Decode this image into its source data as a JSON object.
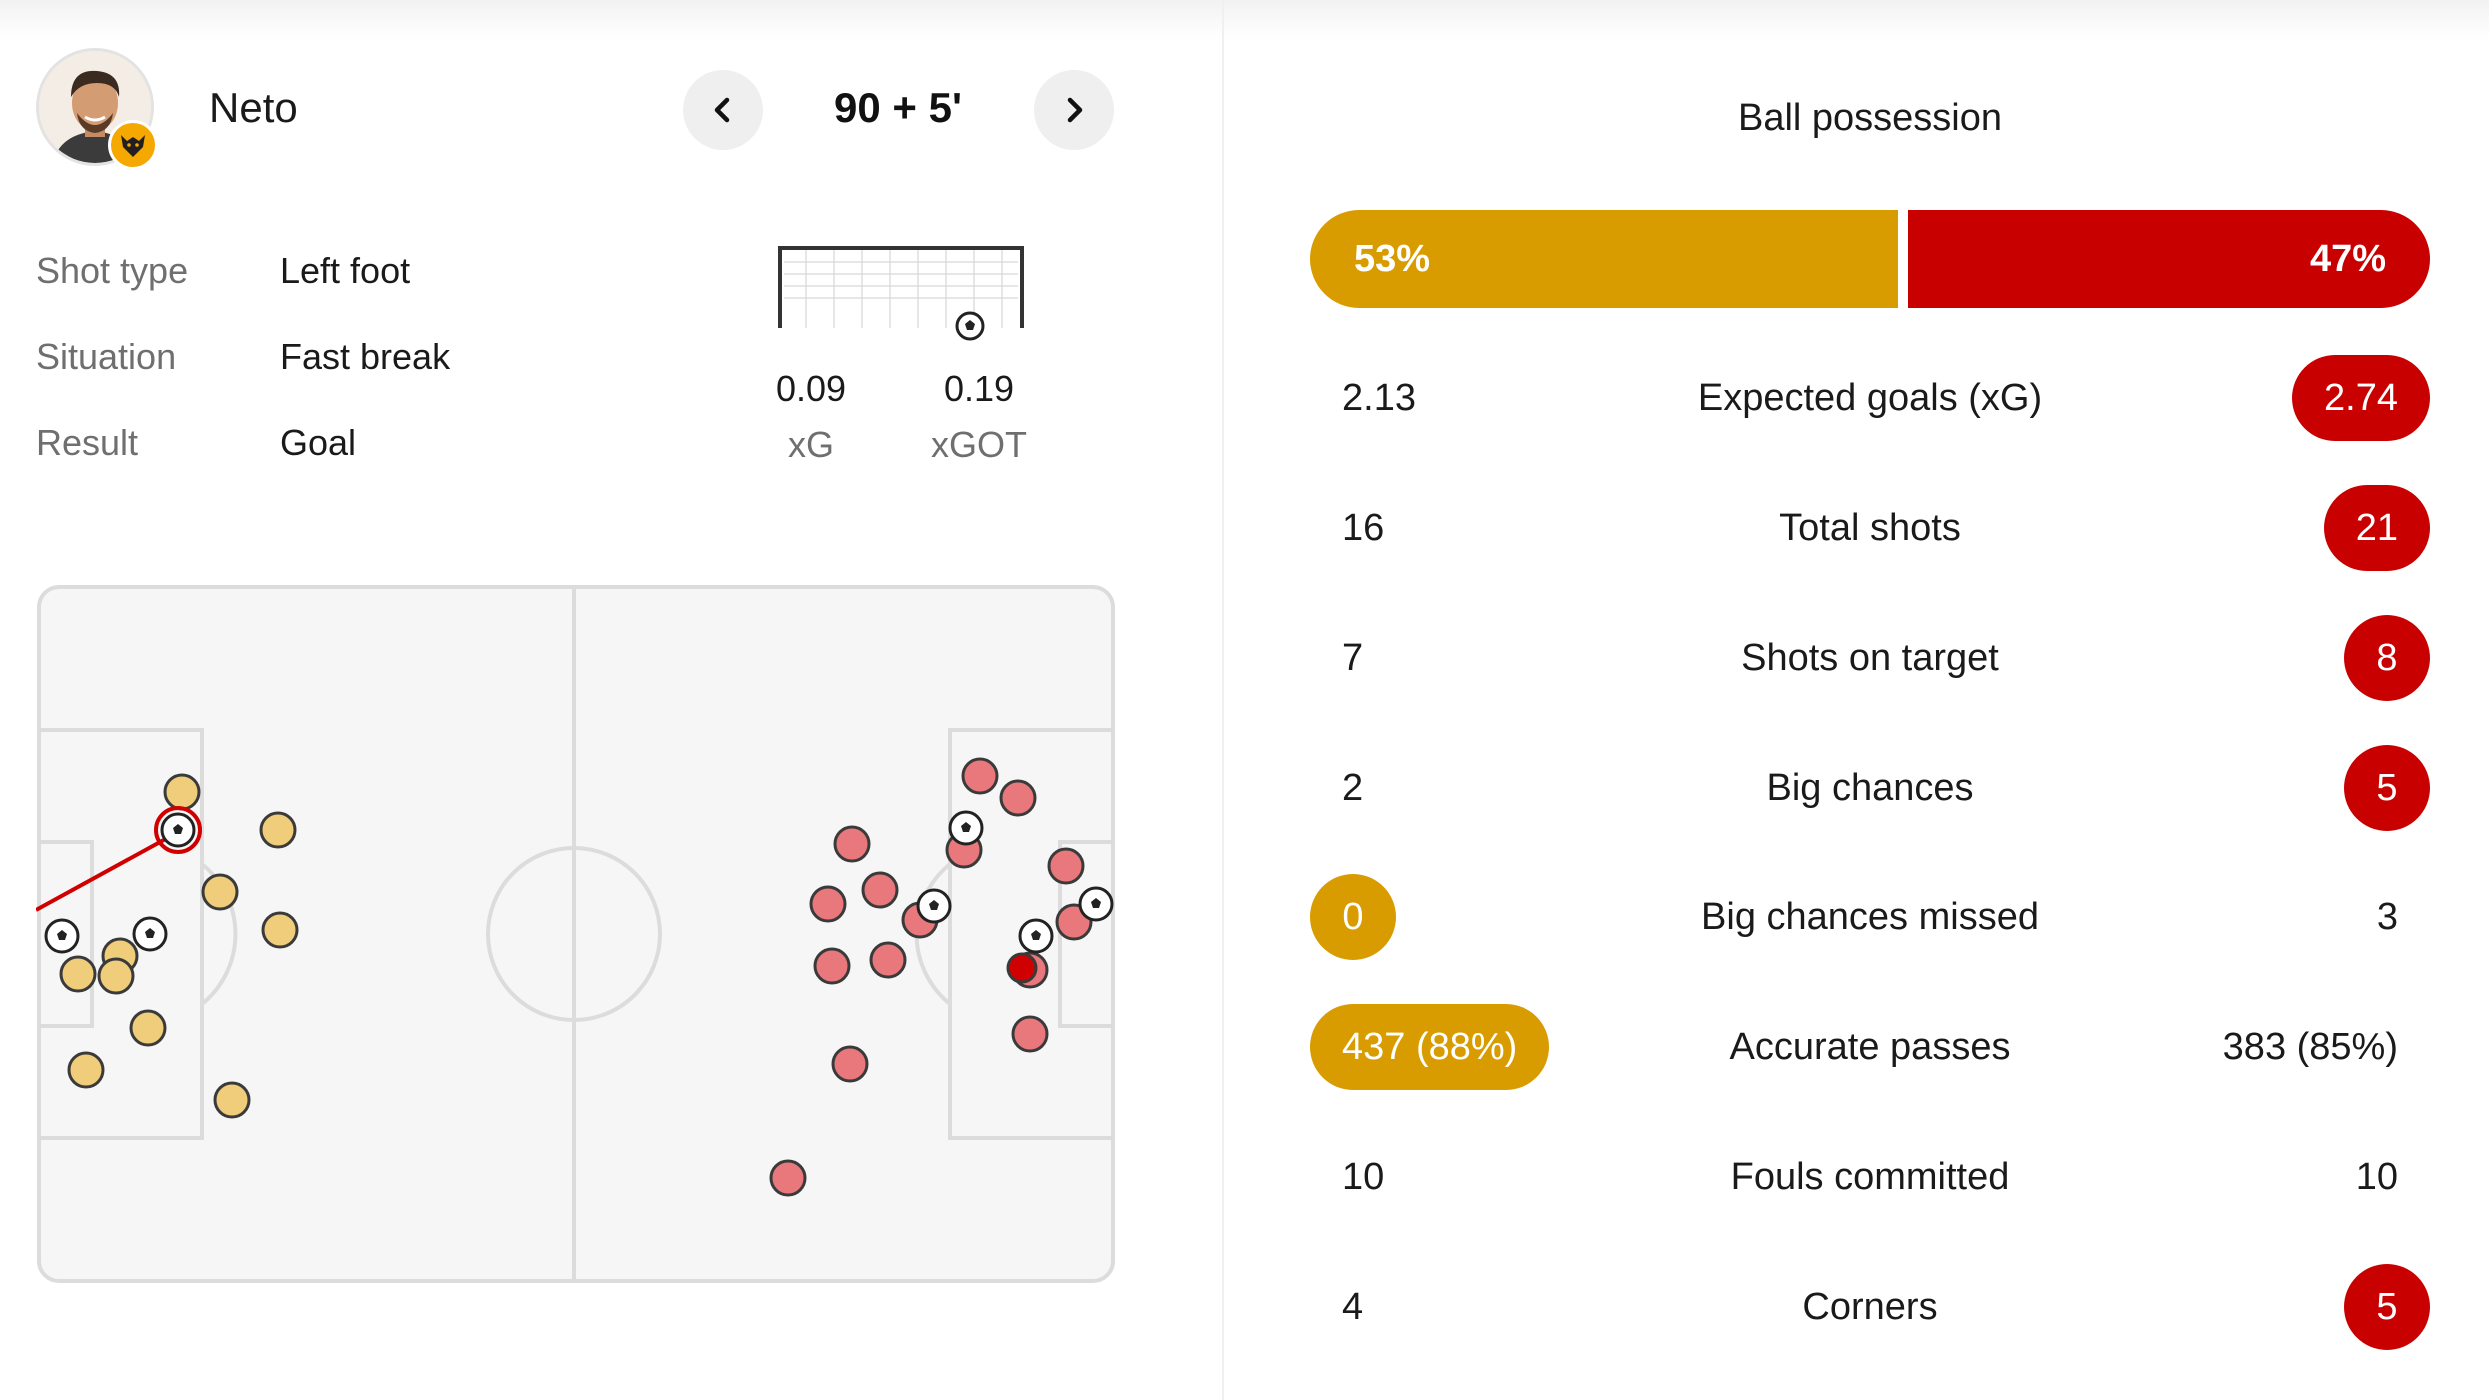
{
  "shot": {
    "player_name": "Neto",
    "time": "90 + 5'",
    "details": [
      {
        "label": "Shot type",
        "value": "Left foot"
      },
      {
        "label": "Situation",
        "value": "Fast break"
      },
      {
        "label": "Result",
        "value": "Goal"
      }
    ],
    "xg": {
      "value": "0.09",
      "label": "xG"
    },
    "xgot": {
      "value": "0.19",
      "label": "xGOT"
    }
  },
  "icons": {
    "prev": "chevron-left-icon",
    "next": "chevron-right-icon",
    "shot_marker": "football-icon",
    "team_badge": "wolves-badge-icon"
  },
  "colors": {
    "home": "#d89c00",
    "away": "#c80000",
    "home_shot": "#f0cd7a",
    "away_shot": "#e9787c",
    "pitch": "#f6f6f6",
    "pitch_lines": "#dcdcdc"
  },
  "possession": {
    "title": "Ball possession",
    "home": "53%",
    "away": "47%",
    "home_fraction": 0.53
  },
  "stats": [
    {
      "name": "Expected goals (xG)",
      "home": "2.13",
      "away": "2.74",
      "highlight": "away"
    },
    {
      "name": "Total shots",
      "home": "16",
      "away": "21",
      "highlight": "away"
    },
    {
      "name": "Shots on target",
      "home": "7",
      "away": "8",
      "highlight": "away"
    },
    {
      "name": "Big chances",
      "home": "2",
      "away": "5",
      "highlight": "away"
    },
    {
      "name": "Big chances missed",
      "home": "0",
      "away": "3",
      "highlight": "home"
    },
    {
      "name": "Accurate passes",
      "home": "437 (88%)",
      "away": "383 (85%)",
      "highlight": "home"
    },
    {
      "name": "Fouls committed",
      "home": "10",
      "away": "10",
      "highlight": "none"
    },
    {
      "name": "Corners",
      "home": "4",
      "away": "5",
      "highlight": "away"
    }
  ]
}
